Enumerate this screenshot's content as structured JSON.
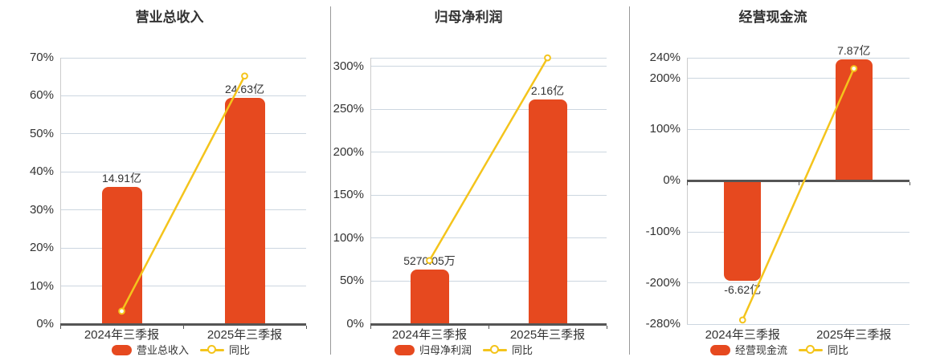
{
  "colors": {
    "background": "#ffffff",
    "bar": "#e6491f",
    "line": "#f4c41c",
    "marker_fill": "#ffffff",
    "text": "#333333",
    "grid_line": "#ccd6e0",
    "axis_line": "#555555",
    "y_axis_line": "#cccccc",
    "divider": "#999999"
  },
  "chart_data": [
    {
      "type": "bar",
      "title": "营业总收入",
      "categories": [
        "2024年三季报",
        "2025年三季报"
      ],
      "bar_series": {
        "name": "营业总收入",
        "value_labels": [
          "14.91亿",
          "24.63亿"
        ],
        "plotted_pct": [
          36.0,
          59.5
        ]
      },
      "line_series": {
        "name": "同比",
        "values_pct": [
          3.4,
          65.2
        ]
      },
      "ylim": [
        0,
        70
      ],
      "yticks": [
        {
          "value": 0,
          "label": "0%"
        },
        {
          "value": 10,
          "label": "10%"
        },
        {
          "value": 20,
          "label": "20%"
        },
        {
          "value": 30,
          "label": "30%"
        },
        {
          "value": 40,
          "label": "40%"
        },
        {
          "value": 50,
          "label": "50%"
        },
        {
          "value": 60,
          "label": "60%"
        },
        {
          "value": 70,
          "label": "70%"
        }
      ],
      "grid": "on",
      "legend_position": "bottom"
    },
    {
      "type": "bar",
      "title": "归母净利润",
      "categories": [
        "2024年三季报",
        "2025年三季报"
      ],
      "bar_series": {
        "name": "归母净利润",
        "value_labels": [
          "5270.05万",
          "2.16亿"
        ],
        "plotted_pct": [
          63.3,
          261.5
        ]
      },
      "line_series": {
        "name": "同比",
        "values_pct": [
          74.0,
          309.9
        ]
      },
      "ylim": [
        0,
        310
      ],
      "yticks": [
        {
          "value": 0,
          "label": "0%"
        },
        {
          "value": 50,
          "label": "50%"
        },
        {
          "value": 100,
          "label": "100%"
        },
        {
          "value": 150,
          "label": "150%"
        },
        {
          "value": 200,
          "label": "200%"
        },
        {
          "value": 250,
          "label": "250%"
        },
        {
          "value": 300,
          "label": "300%"
        },
        {
          "value": 310,
          "label": ""
        }
      ],
      "grid": "on",
      "legend_position": "bottom"
    },
    {
      "type": "bar",
      "title": "经营现金流",
      "categories": [
        "2024年三季报",
        "2025年三季报"
      ],
      "bar_series": {
        "name": "经营现金流",
        "value_labels": [
          "-6.62亿",
          "7.87亿"
        ],
        "plotted_pct": [
          -195,
          237
        ]
      },
      "line_series": {
        "name": "同比",
        "values_pct": [
          -272,
          218.9
        ]
      },
      "ylim": [
        -280,
        240
      ],
      "yticks": [
        {
          "value": -280,
          "label": "-280%"
        },
        {
          "value": -200,
          "label": "-200%"
        },
        {
          "value": -100,
          "label": "-100%"
        },
        {
          "value": 0,
          "label": "0%"
        },
        {
          "value": 100,
          "label": "100%"
        },
        {
          "value": 200,
          "label": "200%"
        },
        {
          "value": 240,
          "label": "240%"
        }
      ],
      "grid": "on",
      "legend_position": "bottom"
    }
  ]
}
